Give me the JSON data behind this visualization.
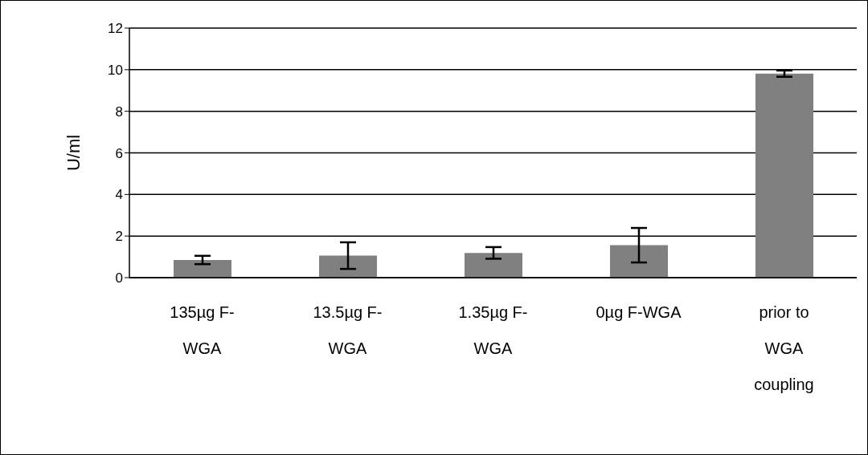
{
  "chart_data": {
    "type": "bar",
    "ylabel": "U/ml",
    "categories": [
      "135µg F-WGA",
      "13.5µg F-WGA",
      "1.35µg F-WGA",
      "0µg F-WGA",
      "prior to WGA coupling"
    ],
    "values": [
      0.85,
      1.06,
      1.19,
      1.56,
      9.81
    ],
    "errors": [
      0.2,
      0.64,
      0.28,
      0.83,
      0.15
    ],
    "color": "#808080",
    "ylim": [
      0,
      12
    ],
    "yticks": [
      0,
      2,
      4,
      6,
      8,
      10,
      12
    ],
    "grid": "y"
  }
}
